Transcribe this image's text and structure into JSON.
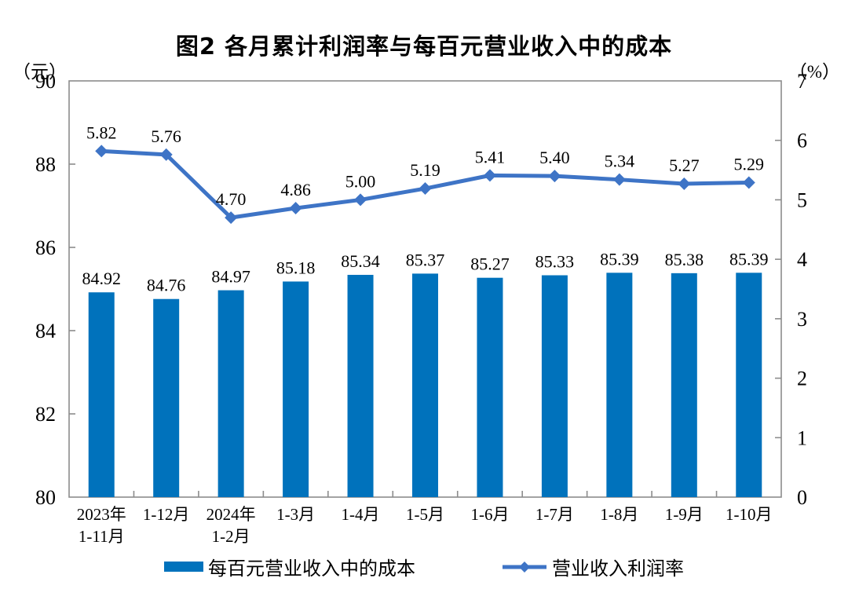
{
  "title": "图2 各月累计利润率与每百元营业收入中的成本",
  "colors": {
    "bar": "#0072BC",
    "line": "#3E74C6",
    "axis": "#8C8C8C",
    "text": "#000000"
  },
  "chart_data": {
    "type": "combo-bar-line",
    "title": "图2 各月累计利润率与每百元营业收入中的成本",
    "categories": [
      "2023年\n1-11月",
      "1-12月",
      "2024年\n1-2月",
      "1-3月",
      "1-4月",
      "1-5月",
      "1-6月",
      "1-7月",
      "1-8月",
      "1-9月",
      "1-10月"
    ],
    "series": [
      {
        "name": "每百元营业收入中的成本",
        "type": "bar",
        "axis": "left",
        "values": [
          84.92,
          84.76,
          84.97,
          85.18,
          85.34,
          85.37,
          85.27,
          85.33,
          85.39,
          85.38,
          85.39
        ]
      },
      {
        "name": "营业收入利润率",
        "type": "line",
        "axis": "right",
        "values": [
          5.82,
          5.76,
          4.7,
          4.86,
          5.0,
          5.19,
          5.41,
          5.4,
          5.34,
          5.27,
          5.29
        ]
      }
    ],
    "left_axis": {
      "unit": "（元）",
      "min": 80,
      "max": 90,
      "ticks": [
        90,
        88,
        86,
        84,
        82,
        80
      ]
    },
    "right_axis": {
      "unit": "（%）",
      "min": 0,
      "max": 7,
      "ticks": [
        7,
        6,
        5,
        4,
        3,
        2,
        1,
        0
      ]
    },
    "grid": false,
    "legend_position": "bottom",
    "label_decimals": 2
  }
}
